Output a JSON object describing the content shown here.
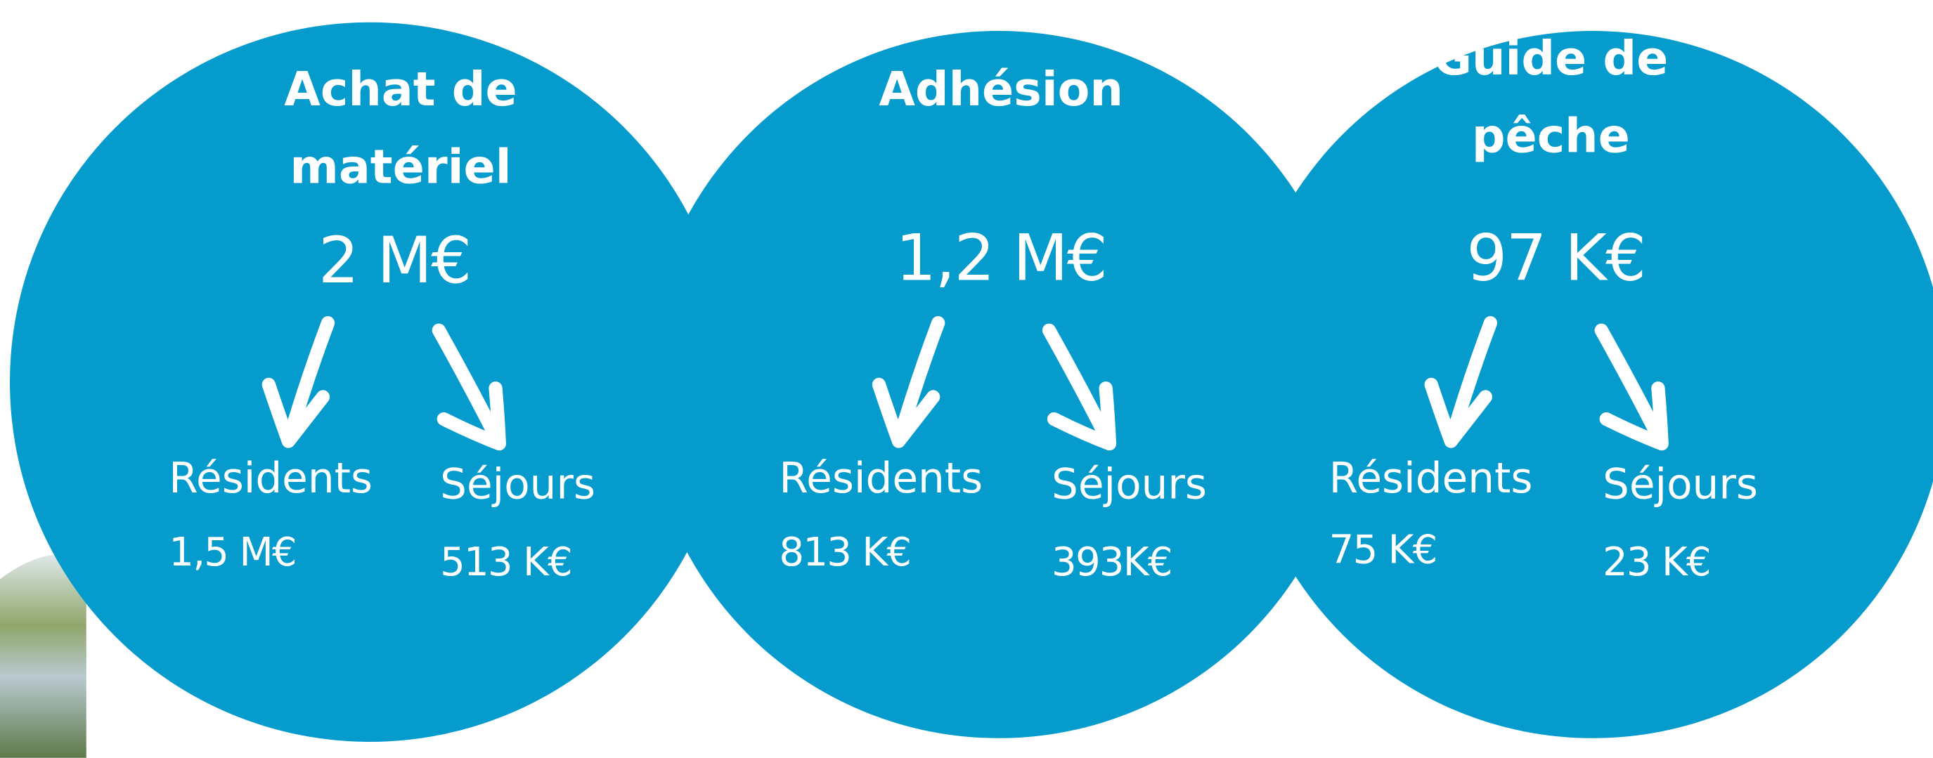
{
  "circles": [
    {
      "title": [
        "Achat de",
        "matériel"
      ],
      "total": "2 M€",
      "residents": {
        "label": "Résidents",
        "value": "1,5 M€"
      },
      "sejours": {
        "label": "Séjours",
        "value": "513 K€"
      }
    },
    {
      "title": [
        "Adhésion"
      ],
      "total": "1,2 M€",
      "residents": {
        "label": "Résidents",
        "value": "813 K€"
      },
      "sejours": {
        "label": "Séjours",
        "value": "393K€"
      }
    },
    {
      "title": [
        "Guide de",
        "pêche"
      ],
      "total": "97 K€",
      "residents": {
        "label": "Résidents",
        "value": "75 K€"
      },
      "sejours": {
        "label": "Séjours",
        "value": "23 K€"
      }
    }
  ]
}
